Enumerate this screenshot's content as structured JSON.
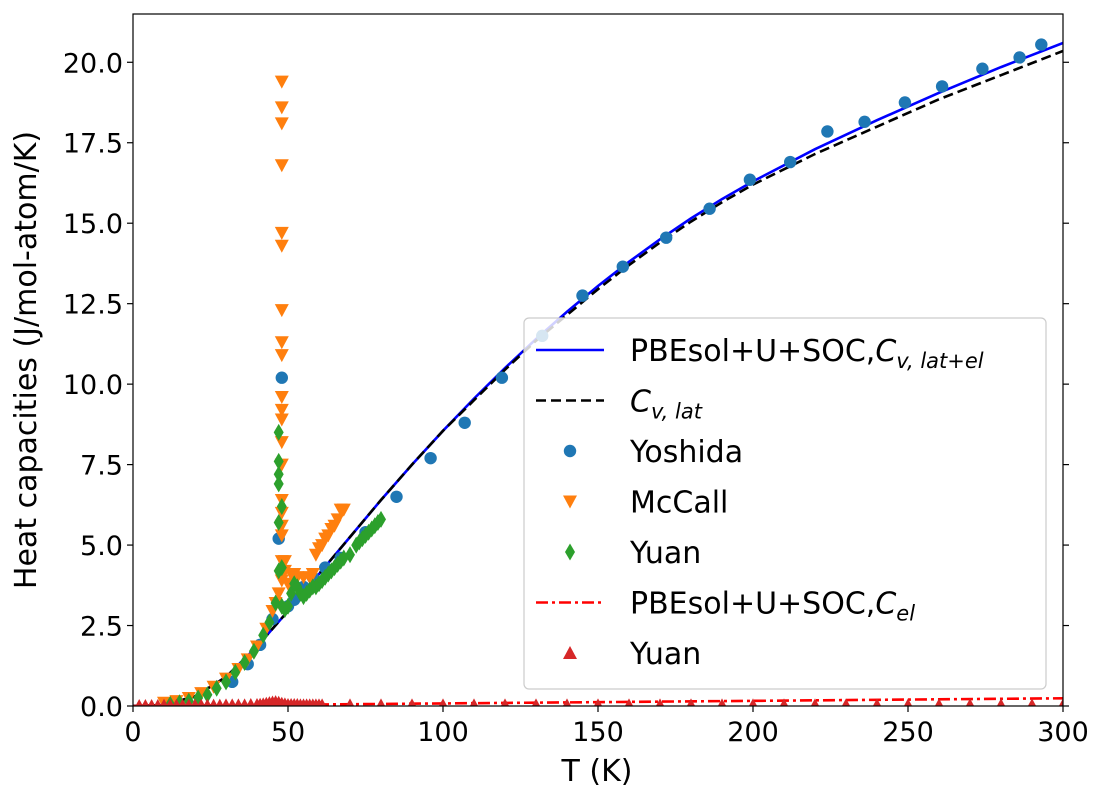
{
  "chart_data": {
    "type": "scatter",
    "xlabel": "T (K)",
    "ylabel": "Heat capacities (J/mol-atom/K)",
    "xlim": [
      0,
      300
    ],
    "ylim": [
      0,
      21.5
    ],
    "xticks": [
      "0",
      "50",
      "100",
      "150",
      "200",
      "250",
      "300"
    ],
    "yticks": [
      "0.0",
      "2.5",
      "5.0",
      "7.5",
      "10.0",
      "12.5",
      "15.0",
      "17.5",
      "20.0"
    ],
    "legend_position": "center-right",
    "series": [
      {
        "name": "PBEsol+U+SOC,",
        "name_math": "C",
        "name_sub": "v, lat+el",
        "kind": "line",
        "style": "solid",
        "color": "#0000ff",
        "x": [
          0,
          10,
          20,
          30,
          40,
          50,
          60,
          70,
          80,
          90,
          100,
          110,
          120,
          130,
          140,
          150,
          160,
          170,
          180,
          190,
          200,
          220,
          240,
          260,
          280,
          300
        ],
        "y": [
          0.0,
          0.03,
          0.3,
          0.9,
          1.85,
          2.95,
          4.1,
          5.25,
          6.4,
          7.5,
          8.55,
          9.55,
          10.5,
          11.4,
          12.25,
          13.05,
          13.8,
          14.5,
          15.15,
          15.75,
          16.3,
          17.3,
          18.2,
          19.05,
          19.85,
          20.6
        ]
      },
      {
        "name": "",
        "name_math": "C",
        "name_sub": "v, lat",
        "kind": "line",
        "style": "dashed",
        "color": "#000000",
        "x": [
          0,
          10,
          20,
          30,
          40,
          50,
          60,
          70,
          80,
          90,
          100,
          110,
          120,
          130,
          140,
          150,
          160,
          170,
          180,
          190,
          200,
          220,
          240,
          260,
          280,
          300
        ],
        "y": [
          0.0,
          0.03,
          0.3,
          0.9,
          1.85,
          2.95,
          4.1,
          5.25,
          6.4,
          7.5,
          8.55,
          9.5,
          10.45,
          11.35,
          12.15,
          12.95,
          13.7,
          14.4,
          15.05,
          15.65,
          16.2,
          17.15,
          18.0,
          18.85,
          19.6,
          20.35
        ]
      },
      {
        "name": "Yoshida",
        "kind": "marker",
        "marker": "circle",
        "color": "#1f77b4",
        "x": [
          32,
          37,
          41,
          45,
          47,
          48,
          50,
          52,
          55,
          58,
          62,
          67,
          75,
          85,
          96,
          107,
          119,
          132,
          145,
          158,
          172,
          186,
          199,
          212,
          224,
          236,
          249,
          261,
          274,
          286,
          293
        ],
        "y": [
          0.75,
          1.3,
          1.9,
          2.7,
          5.2,
          10.2,
          3.1,
          3.3,
          3.7,
          4.0,
          4.3,
          4.6,
          5.4,
          6.5,
          7.7,
          8.8,
          10.2,
          11.5,
          12.75,
          13.65,
          14.55,
          15.45,
          16.35,
          16.9,
          17.85,
          18.15,
          18.75,
          19.25,
          19.8,
          20.15,
          20.55
        ]
      },
      {
        "name": "McCall",
        "kind": "marker",
        "marker": "triangle-down",
        "color": "#ff7f0e",
        "x": [
          10,
          14,
          18,
          22,
          26,
          30,
          34,
          37,
          40,
          43,
          45,
          46,
          47,
          48,
          48,
          48,
          48,
          48,
          48,
          48,
          48,
          48,
          48,
          48,
          48,
          48,
          48,
          48,
          48,
          48,
          48,
          48,
          48,
          49,
          49,
          50,
          51,
          52,
          53,
          55,
          57,
          58,
          59,
          60,
          61,
          62,
          63,
          64,
          65,
          66,
          67,
          68
        ],
        "y": [
          0.1,
          0.15,
          0.25,
          0.4,
          0.6,
          0.85,
          1.15,
          1.45,
          1.85,
          2.4,
          2.95,
          3.2,
          3.5,
          3.9,
          4.5,
          5.3,
          6.4,
          7.5,
          8.2,
          8.9,
          9.2,
          9.6,
          10.9,
          11.3,
          12.3,
          14.3,
          14.7,
          16.8,
          18.1,
          18.6,
          19.4,
          6.0,
          5.6,
          4.5,
          4.2,
          3.8,
          4.1,
          4.1,
          4.0,
          4.0,
          4.0,
          4.1,
          4.7,
          4.9,
          5.0,
          5.2,
          5.3,
          5.5,
          5.6,
          5.8,
          6.1,
          6.1
        ]
      },
      {
        "name": "Yuan",
        "kind": "marker",
        "marker": "diamond",
        "color": "#2ca02c",
        "x": [
          12,
          15,
          18,
          21,
          24,
          27,
          30,
          33,
          36,
          39,
          42,
          44,
          46,
          47,
          47,
          47,
          47,
          47,
          47,
          48,
          48,
          48,
          49,
          50,
          51,
          52,
          53,
          54,
          55,
          56,
          57,
          58,
          59,
          60,
          61,
          62,
          63,
          64,
          65,
          66,
          67,
          68,
          70,
          72,
          73,
          74,
          75,
          76,
          77,
          78,
          79,
          80
        ],
        "y": [
          0.05,
          0.1,
          0.15,
          0.25,
          0.35,
          0.55,
          0.75,
          1.05,
          1.35,
          1.7,
          2.2,
          2.6,
          3.2,
          4.2,
          5.7,
          6.9,
          7.2,
          8.5,
          7.6,
          6.2,
          4.3,
          3.1,
          3.0,
          3.1,
          3.5,
          3.8,
          3.7,
          3.5,
          3.4,
          3.5,
          3.6,
          3.7,
          3.7,
          3.8,
          3.9,
          4.0,
          4.1,
          4.2,
          4.3,
          4.4,
          4.5,
          4.6,
          4.7,
          5.0,
          5.1,
          5.2,
          5.3,
          5.4,
          5.5,
          5.6,
          5.7,
          5.8
        ]
      },
      {
        "name": "PBEsol+U+SOC,",
        "name_math": "C",
        "name_sub": "el",
        "kind": "line",
        "style": "dashdot",
        "color": "#ff0000",
        "x": [
          0,
          50,
          100,
          150,
          200,
          250,
          300
        ],
        "y": [
          0.0,
          0.04,
          0.08,
          0.12,
          0.16,
          0.2,
          0.24
        ]
      },
      {
        "name": "Yuan",
        "kind": "marker",
        "marker": "triangle-up",
        "color": "#d62728",
        "x": [
          2,
          4,
          6,
          8,
          10,
          12,
          14,
          16,
          18,
          20,
          22,
          24,
          26,
          28,
          30,
          32,
          34,
          36,
          38,
          40,
          41,
          42,
          43,
          44,
          45,
          46,
          47,
          48,
          49,
          50,
          51,
          52,
          53,
          54,
          55,
          56,
          57,
          58,
          59,
          60,
          61,
          70,
          80,
          90,
          100,
          110,
          120,
          130,
          140,
          150,
          160,
          170,
          180,
          190,
          200,
          210,
          220,
          230,
          240,
          250,
          260,
          270,
          280,
          290,
          300
        ],
        "y": [
          0.0,
          0.0,
          0.0,
          0.0,
          0.01,
          0.01,
          0.01,
          0.01,
          0.01,
          0.01,
          0.01,
          0.01,
          0.01,
          0.01,
          0.02,
          0.02,
          0.02,
          0.02,
          0.03,
          0.03,
          0.04,
          0.05,
          0.07,
          0.09,
          0.11,
          0.12,
          0.1,
          0.07,
          0.05,
          0.03,
          0.03,
          0.03,
          0.03,
          0.02,
          0.02,
          0.02,
          0.02,
          0.02,
          0.02,
          0.02,
          0.02,
          0.02,
          0.02,
          0.02,
          0.02,
          0.02,
          0.02,
          0.02,
          0.02,
          0.02,
          0.02,
          0.02,
          0.02,
          0.02,
          0.02,
          0.02,
          0.02,
          0.02,
          0.02,
          0.02,
          0.02,
          0.02,
          0.02,
          0.02,
          0.02
        ]
      }
    ]
  }
}
